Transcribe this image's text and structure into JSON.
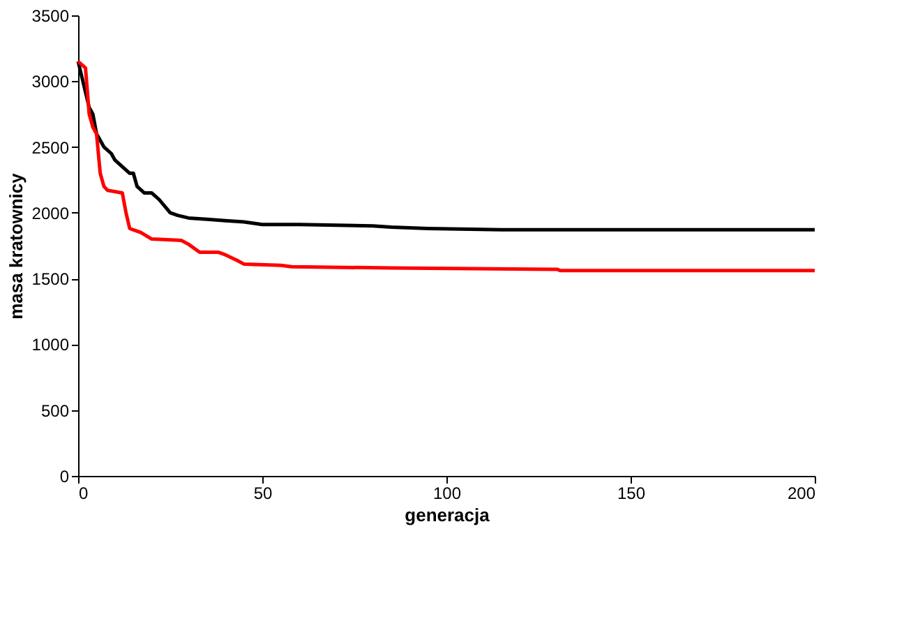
{
  "chart_data": {
    "type": "line",
    "xlabel": "generacja",
    "ylabel": "masa kratownicy",
    "xlim": [
      0,
      200
    ],
    "xticks": [
      0,
      50,
      100,
      150,
      200
    ],
    "ylim": [
      0,
      3500
    ],
    "yticks": [
      0,
      500,
      1000,
      1500,
      2000,
      2500,
      3000,
      3500
    ],
    "grid": false,
    "legend": false,
    "marker": "none",
    "line_style": "solid",
    "series": [
      {
        "color": "#000000",
        "x": [
          0,
          3,
          4,
          5,
          7,
          9,
          10,
          12,
          14,
          15,
          16,
          18,
          20,
          22,
          25,
          27,
          30,
          35,
          40,
          45,
          50,
          60,
          80,
          85,
          95,
          115,
          200
        ],
        "values": [
          3150,
          2800,
          2750,
          2600,
          2500,
          2450,
          2400,
          2350,
          2300,
          2300,
          2200,
          2150,
          2150,
          2100,
          2000,
          1980,
          1960,
          1950,
          1940,
          1930,
          1910,
          1910,
          1900,
          1890,
          1880,
          1870,
          1870
        ]
      },
      {
        "color": "#ff0000",
        "x": [
          0,
          2,
          3,
          4,
          5,
          6,
          7,
          8,
          12,
          13,
          14,
          15,
          17,
          20,
          28,
          30,
          33,
          38,
          40,
          43,
          45,
          55,
          58,
          85,
          130,
          131,
          200
        ],
        "values": [
          3150,
          3100,
          2750,
          2650,
          2600,
          2300,
          2200,
          2170,
          2150,
          2000,
          1880,
          1870,
          1850,
          1800,
          1790,
          1760,
          1700,
          1700,
          1680,
          1640,
          1610,
          1600,
          1590,
          1580,
          1570,
          1560,
          1560
        ]
      }
    ]
  }
}
